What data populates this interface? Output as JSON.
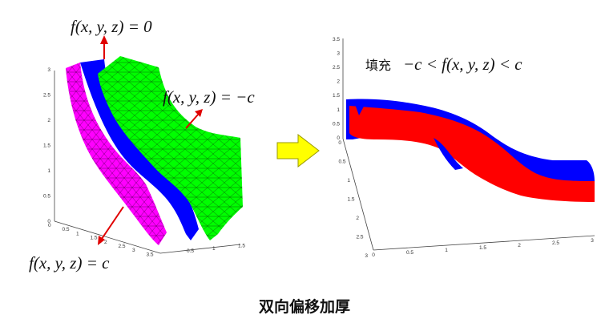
{
  "labels": {
    "top": "f(x, y, z) = 0",
    "right": "f(x, y, z) = −c",
    "bottom": "f(x, y, z) = c",
    "fill_prefix": "填充",
    "fill_condition": "−c < f(x, y, z) < c"
  },
  "caption": "双向偏移加厚",
  "ticks": {
    "left_z": [
      "0",
      "0.5",
      "1",
      "1.5",
      "2",
      "2.5",
      "3"
    ],
    "left_x": [
      "0",
      "0.5",
      "1",
      "1.5",
      "2",
      "2.5",
      "3",
      "3.5"
    ],
    "left_y": [
      "0.5",
      "1",
      "1.5"
    ],
    "right_z": [
      "0",
      "0.5",
      "1",
      "1.5",
      "2",
      "2.5",
      "3",
      "3.5"
    ],
    "right_y": [
      "0",
      "0.5",
      "1",
      "1.5",
      "2",
      "2.5",
      "3"
    ],
    "right_x": [
      "0",
      "0.5",
      "1",
      "1.5",
      "2",
      "2.5",
      "3"
    ]
  },
  "colors": {
    "offset_positive": "#ff00ff",
    "mid_surface": "#0000ff",
    "offset_negative": "#00ff00",
    "filled_region": "#ff0000",
    "arrow": "#e00000",
    "transition_arrow": "#ffff00"
  }
}
